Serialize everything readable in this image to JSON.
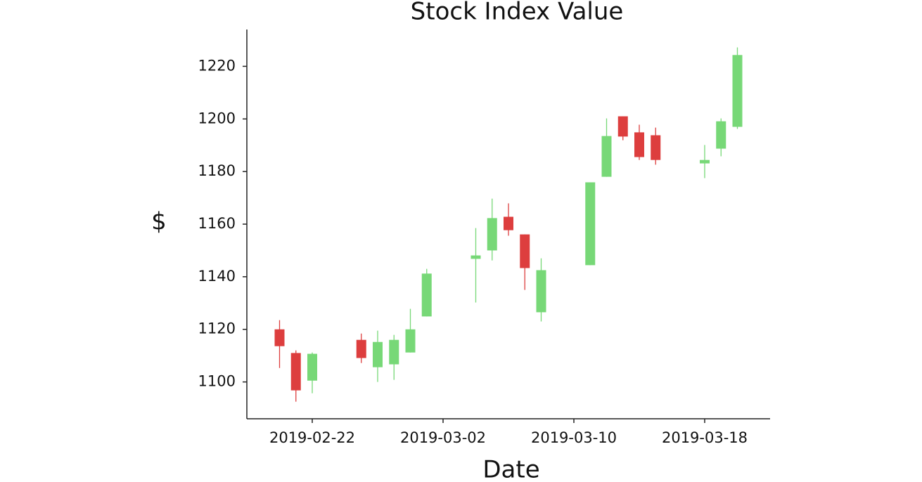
{
  "chart_data": {
    "type": "candlestick",
    "title": "Stock Index Value",
    "x_label": "Date",
    "y_label": "$",
    "x": [
      "2019-02-20",
      "2019-02-21",
      "2019-02-22",
      "2019-02-25",
      "2019-02-26",
      "2019-02-27",
      "2019-02-28",
      "2019-03-01",
      "2019-03-04",
      "2019-03-05",
      "2019-03-06",
      "2019-03-07",
      "2019-03-08",
      "2019-03-11",
      "2019-03-12",
      "2019-03-13",
      "2019-03-14",
      "2019-03-15",
      "2019-03-18",
      "2019-03-19",
      "2019-03-20"
    ],
    "open": [
      1120.0,
      1111.0,
      1100.5,
      1116.0,
      1105.6,
      1106.7,
      1111.2,
      1124.9,
      1146.8,
      1150.0,
      1162.8,
      1156.1,
      1126.5,
      1144.4,
      1178.0,
      1201.0,
      1194.9,
      1193.8,
      1183.1,
      1188.7,
      1197.0
    ],
    "high": [
      1123.5,
      1112.0,
      1111.2,
      1118.4,
      1119.5,
      1117.9,
      1127.8,
      1143.0,
      1158.5,
      1169.7,
      1167.9,
      1156.1,
      1147.0,
      1175.9,
      1200.2,
      1201.0,
      1197.8,
      1196.7,
      1190.1,
      1200.2,
      1227.2
    ],
    "low": [
      1105.3,
      1092.5,
      1095.7,
      1107.2,
      1100.0,
      1100.8,
      1111.2,
      1124.9,
      1130.2,
      1146.2,
      1155.6,
      1135.0,
      1123.0,
      1144.4,
      1178.0,
      1191.9,
      1184.4,
      1182.6,
      1177.5,
      1185.8,
      1196.2
    ],
    "close": [
      1113.6,
      1096.8,
      1110.7,
      1109.1,
      1115.2,
      1116.0,
      1120.0,
      1141.2,
      1148.1,
      1162.3,
      1157.7,
      1143.3,
      1142.5,
      1175.9,
      1193.5,
      1193.3,
      1185.5,
      1184.4,
      1184.4,
      1199.1,
      1224.3
    ],
    "increasing_color": "#77d877",
    "decreasing_color": "#dd3e3e",
    "xlim": [
      "2019-02-18",
      "2019-03-22"
    ],
    "xticks": [
      "2019-02-22",
      "2019-03-02",
      "2019-03-10",
      "2019-03-18"
    ],
    "ylim": [
      1086,
      1234
    ],
    "yticks": [
      1100,
      1120,
      1140,
      1160,
      1180,
      1200,
      1220
    ],
    "grid": false
  }
}
